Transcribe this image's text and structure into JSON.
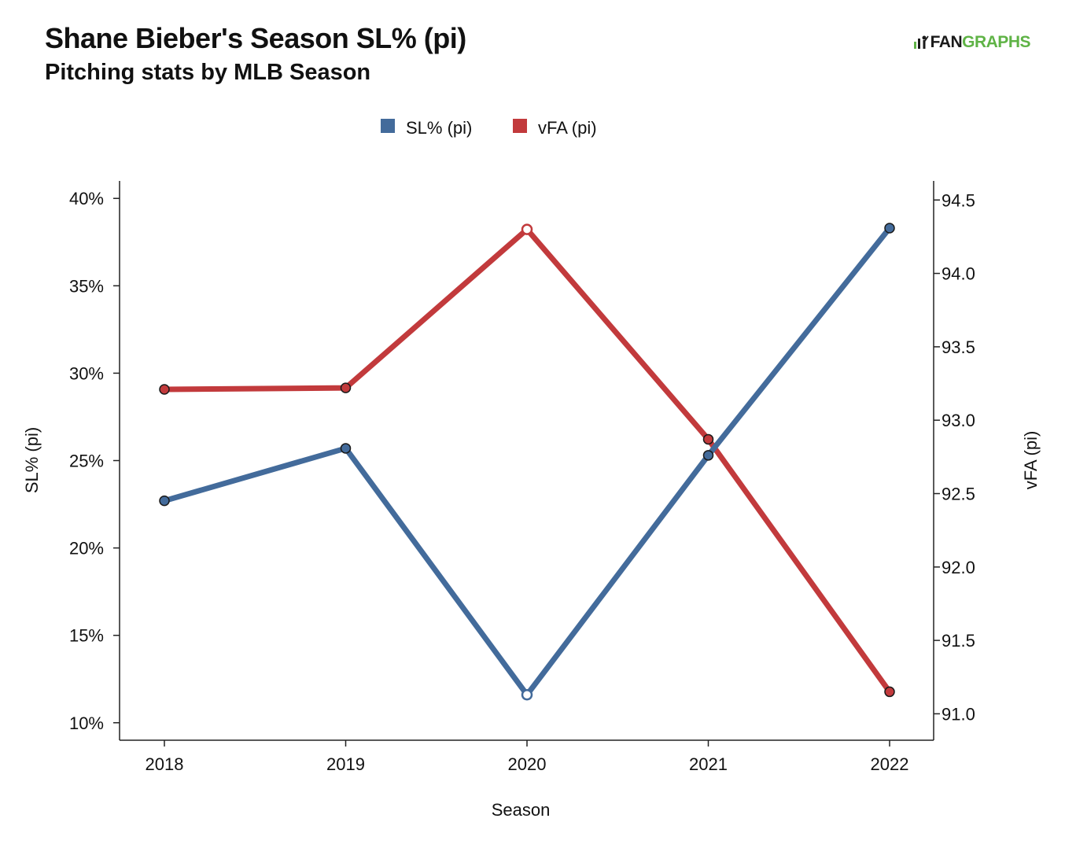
{
  "header": {
    "title": "Shane Bieber's Season SL% (pi)",
    "subtitle": "Pitching stats by MLB Season"
  },
  "logo": {
    "text_dark": "FAN",
    "text_green": "GRAPHS",
    "colors": {
      "dark": "#1a1a1a",
      "green": "#5fb346"
    }
  },
  "chart_data": {
    "type": "line",
    "title": "Shane Bieber's Season SL% (pi)",
    "subtitle": "Pitching stats by MLB Season",
    "xlabel": "Season",
    "x": [
      "2018",
      "2019",
      "2020",
      "2021",
      "2022"
    ],
    "legend_position": "top-center",
    "grid": false,
    "y_left": {
      "label": "SL% (pi)",
      "range": [
        9.0,
        41.0
      ],
      "ticks": [
        10,
        15,
        20,
        25,
        30,
        35,
        40
      ],
      "tick_labels": [
        "10%",
        "15%",
        "20%",
        "25%",
        "30%",
        "35%",
        "40%"
      ]
    },
    "y_right": {
      "label": "vFA (pi)",
      "range": [
        90.82,
        94.63
      ],
      "ticks": [
        91.0,
        91.5,
        92.0,
        92.5,
        93.0,
        93.5,
        94.0,
        94.5
      ],
      "tick_labels": [
        "91.0",
        "91.5",
        "92.0",
        "92.5",
        "93.0",
        "93.5",
        "94.0",
        "94.5"
      ]
    },
    "series": [
      {
        "name": "SL% (pi)",
        "axis": "left",
        "color": "#436b9b",
        "values": [
          22.7,
          25.7,
          11.6,
          25.3,
          38.3
        ],
        "hollow_index": 2
      },
      {
        "name": "vFA (pi)",
        "axis": "right",
        "color": "#c23a3c",
        "values": [
          93.21,
          93.22,
          94.3,
          92.87,
          91.15
        ],
        "hollow_index": 2
      }
    ]
  }
}
